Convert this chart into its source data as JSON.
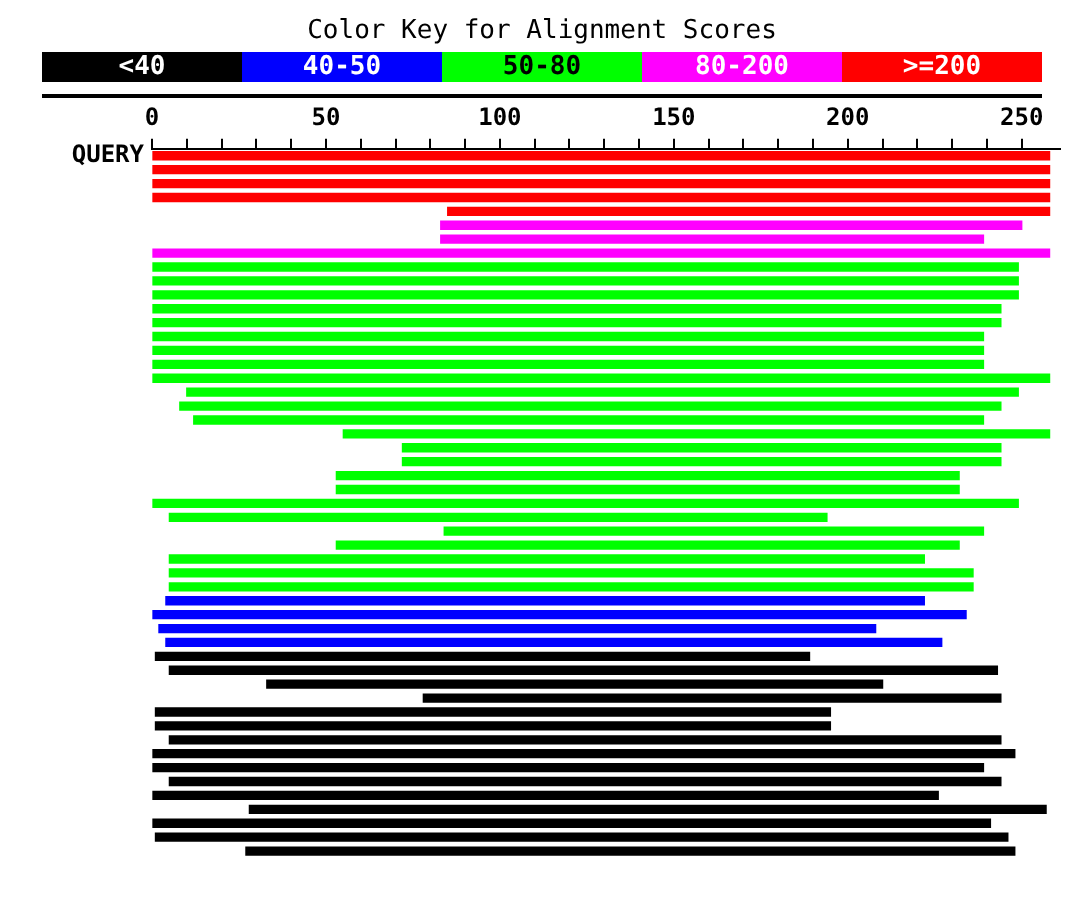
{
  "chart_data": {
    "type": "bar",
    "orientation": "horizontal",
    "title": "Color Key for Alignment Scores",
    "tick_labels": "x",
    "annotations": [
      "QUERY",
      "<40",
      "40-50",
      "50-80",
      "80-200",
      ">=200"
    ],
    "categories": [
      null,
      null,
      null,
      null,
      null,
      null,
      null,
      null,
      null,
      null,
      null,
      null,
      null,
      null,
      null,
      null,
      null,
      null,
      null,
      null,
      null,
      null,
      null,
      null,
      null,
      null,
      null,
      null,
      null,
      null,
      null,
      null,
      null,
      null,
      null,
      null,
      null,
      null,
      null,
      null,
      null,
      null,
      null,
      null,
      null,
      null,
      null,
      null,
      null,
      null,
      null
    ],
    "base": [
      0,
      0,
      0,
      0,
      85,
      83,
      83,
      0,
      0,
      0,
      0,
      0,
      0,
      0,
      0,
      0,
      0,
      10,
      8,
      12,
      55,
      72,
      72,
      53,
      53,
      0,
      5,
      84,
      53,
      5,
      5,
      5,
      4,
      0,
      2,
      4,
      1,
      5,
      33,
      78,
      1,
      1,
      5,
      0,
      0,
      5,
      0,
      28,
      0,
      1,
      27
    ],
    "values": [
      258,
      258,
      258,
      258,
      173,
      167,
      156,
      258,
      249,
      249,
      249,
      244,
      244,
      239,
      239,
      239,
      258,
      239,
      236,
      227,
      203,
      172,
      172,
      179,
      179,
      249,
      189,
      155,
      179,
      217,
      231,
      231,
      218,
      234,
      206,
      223,
      188,
      238,
      177,
      166,
      194,
      194,
      239,
      248,
      239,
      239,
      226,
      229,
      241,
      245,
      221
    ],
    "colors": [
      "#ff0000",
      "#ff0000",
      "#ff0000",
      "#ff0000",
      "#ff0000",
      "#ff00ff",
      "#ff00ff",
      "#ff00ff",
      "#00ff00",
      "#00ff00",
      "#00ff00",
      "#00ff00",
      "#00ff00",
      "#00ff00",
      "#00ff00",
      "#00ff00",
      "#00ff00",
      "#00ff00",
      "#00ff00",
      "#00ff00",
      "#00ff00",
      "#00ff00",
      "#00ff00",
      "#00ff00",
      "#00ff00",
      "#00ff00",
      "#00ff00",
      "#00ff00",
      "#00ff00",
      "#00ff00",
      "#00ff00",
      "#00ff00",
      "#0000ff",
      "#0000ff",
      "#0000ff",
      "#0000ff",
      "#000000",
      "#000000",
      "#000000",
      "#000000",
      "#000000",
      "#000000",
      "#000000",
      "#000000",
      "#000000",
      "#000000",
      "#000000",
      "#000000",
      "#000000",
      "#000000",
      "#000000"
    ],
    "xlim": [
      0,
      261
    ],
    "xticks": [
      0,
      {
        "value": 10,
        "label": null
      },
      {
        "value": 20,
        "label": null
      },
      {
        "value": 30,
        "label": null
      },
      {
        "value": 40,
        "label": null
      },
      50,
      {
        "value": 60,
        "label": null
      },
      {
        "value": 70,
        "label": null
      },
      {
        "value": 80,
        "label": null
      },
      {
        "value": 90,
        "label": null
      },
      100,
      {
        "value": 110,
        "label": null
      },
      {
        "value": 120,
        "label": null
      },
      {
        "value": 130,
        "label": null
      },
      {
        "value": 140,
        "label": null
      },
      150,
      {
        "value": 160,
        "label": null
      },
      {
        "value": 170,
        "label": null
      },
      {
        "value": 180,
        "label": null
      },
      {
        "value": 190,
        "label": null
      },
      200,
      {
        "value": 210,
        "label": null
      },
      {
        "value": 220,
        "label": null
      },
      {
        "value": 230,
        "label": null
      },
      {
        "value": 240,
        "label": null
      },
      250
    ]
  }
}
